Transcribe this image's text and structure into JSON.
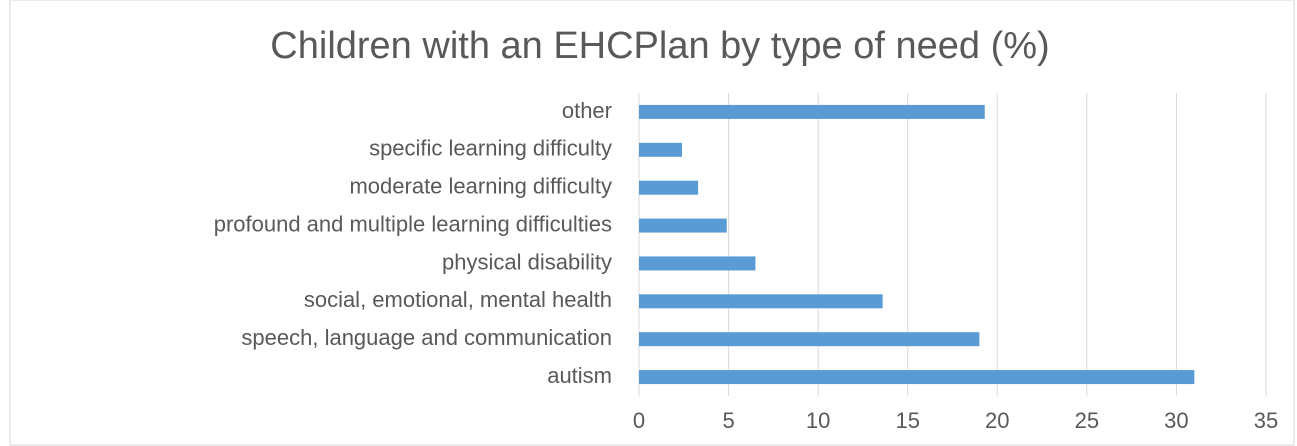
{
  "chart_data": {
    "type": "bar",
    "orientation": "horizontal",
    "title": "Children with an EHCPlan by type of need (%)",
    "categories": [
      "autism",
      "speech, language and communication",
      "social, emotional, mental health",
      "physical disability",
      "profound and multiple learning difficulties",
      "moderate learning difficulty",
      "specific learning difficulty",
      "other"
    ],
    "values": [
      31,
      19,
      13.6,
      6.5,
      4.9,
      3.3,
      2.4,
      19.3
    ],
    "color": "#5b9bd5",
    "xlim": [
      0,
      35
    ],
    "xticks": [
      0,
      5,
      10,
      15,
      20,
      25,
      30,
      35
    ],
    "grid": true
  }
}
